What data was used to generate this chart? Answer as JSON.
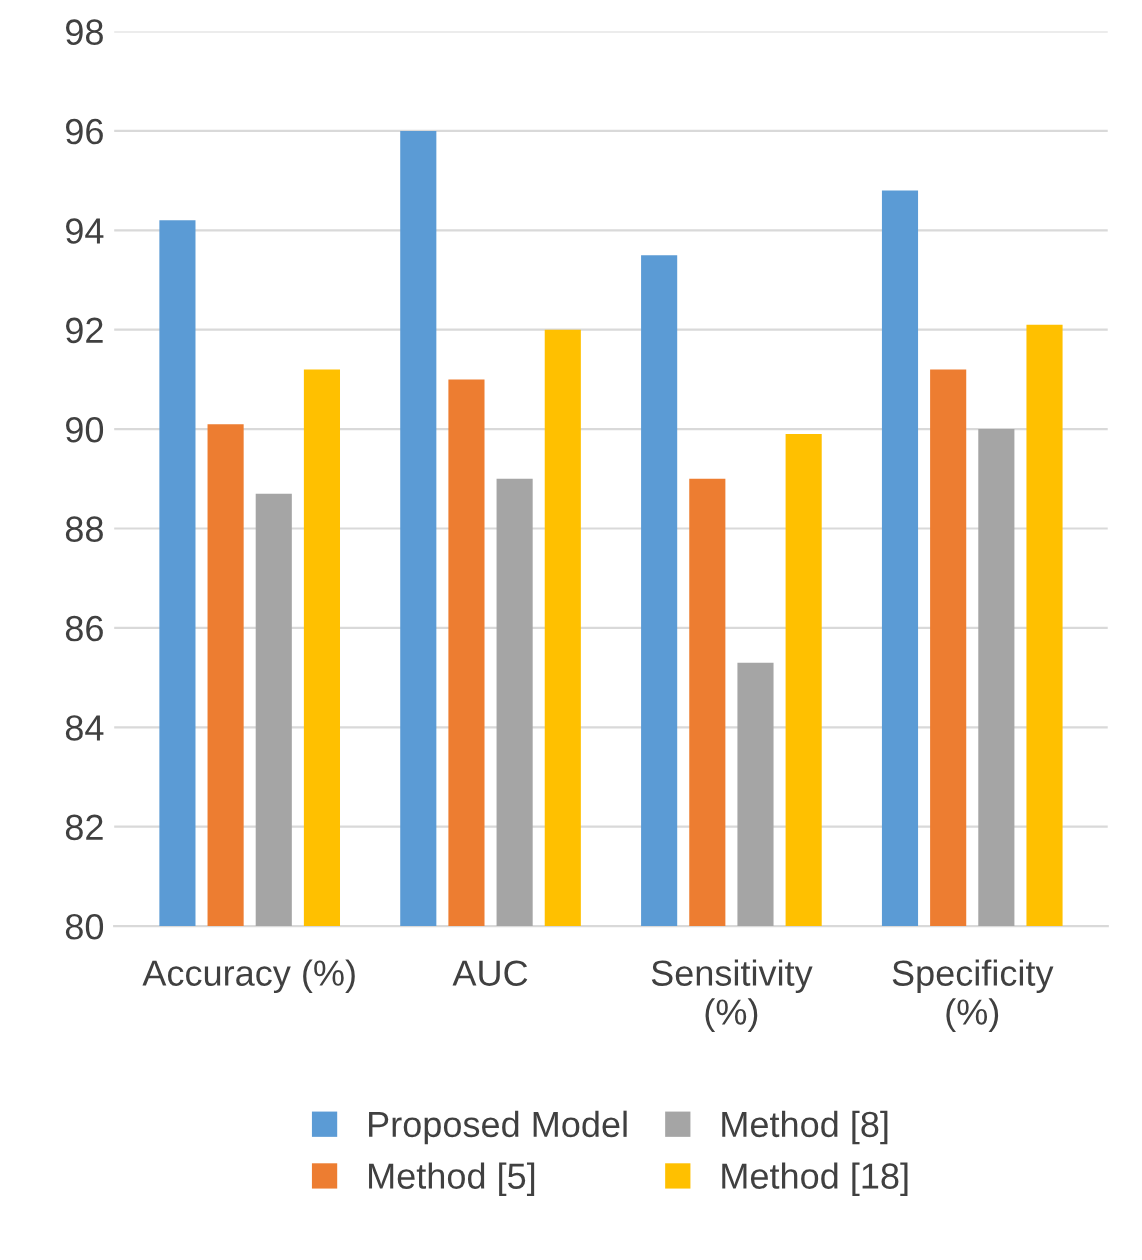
{
  "chart_data": {
    "type": "bar",
    "categories": [
      "Accuracy (%)",
      "AUC",
      "Sensitivity\n(%)",
      "Specificity\n(%)"
    ],
    "series": [
      {
        "name": "Proposed Model",
        "color": "#5b9bd5",
        "values": [
          94.2,
          96,
          93.5,
          94.8
        ]
      },
      {
        "name": "Method [5]",
        "color": "#ed7d31",
        "values": [
          90.1,
          91,
          89,
          91.2
        ]
      },
      {
        "name": "Method [8]",
        "color": "#a5a5a5",
        "values": [
          88.7,
          89,
          85.3,
          90
        ]
      },
      {
        "name": "Method [18]",
        "color": "#ffc000",
        "values": [
          91.2,
          92,
          89.9,
          92.1
        ]
      }
    ],
    "ylim": [
      80,
      98
    ],
    "yticks": [
      80,
      82,
      84,
      86,
      88,
      90,
      92,
      94,
      96,
      98
    ],
    "grid": "y",
    "legend": "bottom"
  }
}
